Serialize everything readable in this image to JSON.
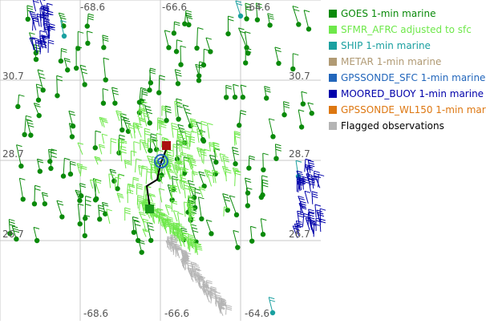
{
  "map": {
    "lon_labels_top": [
      "-68.6",
      "-66.6",
      "-64.6"
    ],
    "lon_labels_bottom": [
      "-68.6",
      "-66.6",
      "-64.6"
    ],
    "lat_labels_left": [
      "30.7",
      "28.7",
      "26.7"
    ],
    "lat_labels_right": [
      "30.7",
      "28.7",
      "26.7"
    ]
  },
  "legend": {
    "items": [
      {
        "label": "GOES 1-min marine",
        "color": "#0a8a0a"
      },
      {
        "label": "SFMR_AFRC adjusted to sfc",
        "color": "#6ee84a"
      },
      {
        "label": "SHIP 1-min marine",
        "color": "#1aa0a0"
      },
      {
        "label": "METAR 1-min marine",
        "color": "#b09a74"
      },
      {
        "label": "GPSSONDE_SFC 1-min marine",
        "color": "#2266bb"
      },
      {
        "label": "MOORED_BUOY 1-min marine",
        "color": "#0000aa"
      },
      {
        "label": "GPSSONDE_WL150 1-min mar",
        "color": "#dd7711"
      },
      {
        "label": "Flagged observations",
        "color": "#b4b4b4"
      }
    ]
  },
  "colors": {
    "goes": "#0a8a0a",
    "sfmr": "#6ee84a",
    "ship": "#1aa0a0",
    "metar": "#b09a74",
    "gpssonde_sfc": "#2266bb",
    "buoy": "#0000aa",
    "flagged": "#b4b4b4",
    "grid": "#c8c8c8",
    "track": "#000000",
    "start_marker": "#1a9a1a",
    "end_marker": "#aa1111"
  }
}
